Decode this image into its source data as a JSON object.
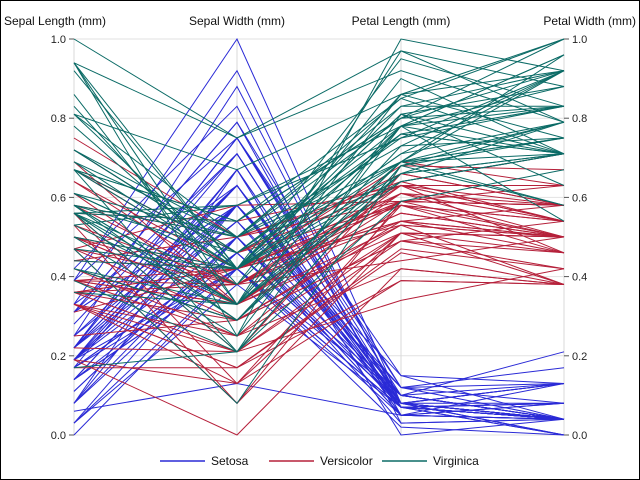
{
  "chart_data": {
    "type": "line",
    "subtype": "parallel-coordinates",
    "axes": [
      "Sepal Length (mm)",
      "Sepal Width (mm)",
      "Petal Length (mm)",
      "Petal Width (mm)"
    ],
    "ylim": [
      0.0,
      1.0
    ],
    "y_ticks": [
      "0.0",
      "0.2",
      "0.4",
      "0.6",
      "0.8",
      "1.0"
    ],
    "grid": true,
    "legend_position": "bottom",
    "series": [
      {
        "name": "Setosa",
        "color": "#2a2ad6",
        "values": [
          [
            0.22,
            0.63,
            0.07,
            0.04
          ],
          [
            0.17,
            0.42,
            0.07,
            0.04
          ],
          [
            0.11,
            0.5,
            0.05,
            0.04
          ],
          [
            0.08,
            0.46,
            0.08,
            0.04
          ],
          [
            0.19,
            0.67,
            0.07,
            0.04
          ],
          [
            0.31,
            0.79,
            0.12,
            0.13
          ],
          [
            0.08,
            0.58,
            0.07,
            0.08
          ],
          [
            0.19,
            0.58,
            0.08,
            0.04
          ],
          [
            0.03,
            0.38,
            0.07,
            0.04
          ],
          [
            0.17,
            0.46,
            0.08,
            0.0
          ],
          [
            0.31,
            0.71,
            0.08,
            0.04
          ],
          [
            0.14,
            0.58,
            0.1,
            0.04
          ],
          [
            0.14,
            0.42,
            0.07,
            0.0
          ],
          [
            0.0,
            0.42,
            0.02,
            0.0
          ],
          [
            0.42,
            0.83,
            0.03,
            0.04
          ],
          [
            0.39,
            1.0,
            0.08,
            0.13
          ],
          [
            0.31,
            0.79,
            0.05,
            0.13
          ],
          [
            0.22,
            0.63,
            0.07,
            0.08
          ],
          [
            0.39,
            0.75,
            0.12,
            0.08
          ],
          [
            0.22,
            0.75,
            0.08,
            0.08
          ],
          [
            0.31,
            0.58,
            0.12,
            0.04
          ],
          [
            0.22,
            0.71,
            0.08,
            0.13
          ],
          [
            0.08,
            0.67,
            0.0,
            0.04
          ],
          [
            0.22,
            0.54,
            0.12,
            0.17
          ],
          [
            0.14,
            0.58,
            0.15,
            0.04
          ],
          [
            0.19,
            0.42,
            0.1,
            0.04
          ],
          [
            0.19,
            0.58,
            0.1,
            0.13
          ],
          [
            0.25,
            0.63,
            0.08,
            0.04
          ],
          [
            0.25,
            0.58,
            0.07,
            0.04
          ],
          [
            0.11,
            0.5,
            0.1,
            0.04
          ],
          [
            0.14,
            0.46,
            0.1,
            0.04
          ],
          [
            0.31,
            0.58,
            0.08,
            0.13
          ],
          [
            0.25,
            0.88,
            0.08,
            0.0
          ],
          [
            0.33,
            0.92,
            0.07,
            0.04
          ],
          [
            0.17,
            0.46,
            0.08,
            0.04
          ],
          [
            0.19,
            0.5,
            0.03,
            0.04
          ],
          [
            0.33,
            0.63,
            0.05,
            0.04
          ],
          [
            0.17,
            0.67,
            0.07,
            0.0
          ],
          [
            0.03,
            0.42,
            0.05,
            0.04
          ],
          [
            0.22,
            0.58,
            0.08,
            0.04
          ],
          [
            0.19,
            0.63,
            0.05,
            0.08
          ],
          [
            0.06,
            0.13,
            0.05,
            0.08
          ],
          [
            0.03,
            0.5,
            0.05,
            0.04
          ],
          [
            0.19,
            0.63,
            0.1,
            0.21
          ],
          [
            0.22,
            0.75,
            0.15,
            0.13
          ],
          [
            0.14,
            0.42,
            0.07,
            0.08
          ],
          [
            0.22,
            0.75,
            0.1,
            0.04
          ],
          [
            0.08,
            0.5,
            0.07,
            0.04
          ],
          [
            0.28,
            0.71,
            0.08,
            0.04
          ],
          [
            0.19,
            0.54,
            0.07,
            0.04
          ]
        ]
      },
      {
        "name": "Versicolor",
        "color": "#b5203a",
        "values": [
          [
            0.75,
            0.5,
            0.63,
            0.54
          ],
          [
            0.58,
            0.5,
            0.59,
            0.58
          ],
          [
            0.72,
            0.46,
            0.66,
            0.58
          ],
          [
            0.33,
            0.13,
            0.51,
            0.5
          ],
          [
            0.61,
            0.33,
            0.61,
            0.58
          ],
          [
            0.39,
            0.33,
            0.59,
            0.5
          ],
          [
            0.56,
            0.54,
            0.63,
            0.63
          ],
          [
            0.17,
            0.17,
            0.39,
            0.38
          ],
          [
            0.64,
            0.38,
            0.61,
            0.5
          ],
          [
            0.25,
            0.29,
            0.49,
            0.54
          ],
          [
            0.19,
            0.0,
            0.42,
            0.38
          ],
          [
            0.44,
            0.42,
            0.54,
            0.58
          ],
          [
            0.47,
            0.08,
            0.51,
            0.38
          ],
          [
            0.5,
            0.38,
            0.63,
            0.54
          ],
          [
            0.36,
            0.38,
            0.44,
            0.5
          ],
          [
            0.67,
            0.46,
            0.58,
            0.54
          ],
          [
            0.36,
            0.42,
            0.59,
            0.58
          ],
          [
            0.42,
            0.29,
            0.53,
            0.38
          ],
          [
            0.53,
            0.08,
            0.59,
            0.58
          ],
          [
            0.36,
            0.21,
            0.49,
            0.42
          ],
          [
            0.44,
            0.5,
            0.64,
            0.71
          ],
          [
            0.5,
            0.33,
            0.51,
            0.5
          ],
          [
            0.56,
            0.21,
            0.66,
            0.58
          ],
          [
            0.5,
            0.33,
            0.63,
            0.46
          ],
          [
            0.58,
            0.38,
            0.56,
            0.5
          ],
          [
            0.64,
            0.42,
            0.58,
            0.54
          ],
          [
            0.69,
            0.33,
            0.64,
            0.54
          ],
          [
            0.67,
            0.42,
            0.68,
            0.67
          ],
          [
            0.47,
            0.38,
            0.59,
            0.58
          ],
          [
            0.39,
            0.25,
            0.42,
            0.38
          ],
          [
            0.33,
            0.17,
            0.47,
            0.42
          ],
          [
            0.33,
            0.17,
            0.46,
            0.38
          ],
          [
            0.42,
            0.29,
            0.49,
            0.46
          ],
          [
            0.47,
            0.29,
            0.69,
            0.63
          ],
          [
            0.31,
            0.42,
            0.59,
            0.58
          ],
          [
            0.47,
            0.58,
            0.59,
            0.63
          ],
          [
            0.67,
            0.46,
            0.63,
            0.58
          ],
          [
            0.56,
            0.13,
            0.58,
            0.5
          ],
          [
            0.36,
            0.42,
            0.53,
            0.5
          ],
          [
            0.33,
            0.21,
            0.51,
            0.5
          ],
          [
            0.33,
            0.25,
            0.58,
            0.46
          ],
          [
            0.5,
            0.42,
            0.61,
            0.54
          ],
          [
            0.42,
            0.25,
            0.51,
            0.46
          ],
          [
            0.19,
            0.13,
            0.39,
            0.38
          ],
          [
            0.36,
            0.29,
            0.54,
            0.5
          ],
          [
            0.39,
            0.42,
            0.54,
            0.46
          ],
          [
            0.39,
            0.38,
            0.54,
            0.5
          ],
          [
            0.53,
            0.38,
            0.56,
            0.5
          ],
          [
            0.22,
            0.21,
            0.34,
            0.42
          ],
          [
            0.39,
            0.33,
            0.53,
            0.5
          ]
        ]
      },
      {
        "name": "Virginica",
        "color": "#0b6b66",
        "values": [
          [
            0.56,
            0.54,
            0.85,
            1.0
          ],
          [
            0.42,
            0.29,
            0.69,
            0.75
          ],
          [
            0.78,
            0.42,
            0.83,
            0.83
          ],
          [
            0.56,
            0.38,
            0.78,
            0.71
          ],
          [
            0.61,
            0.42,
            0.81,
            0.88
          ],
          [
            0.92,
            0.42,
            0.95,
            0.83
          ],
          [
            0.17,
            0.21,
            0.59,
            0.67
          ],
          [
            0.83,
            0.38,
            0.9,
            0.71
          ],
          [
            0.67,
            0.21,
            0.81,
            0.71
          ],
          [
            0.81,
            0.67,
            0.86,
            1.0
          ],
          [
            0.61,
            0.5,
            0.69,
            0.79
          ],
          [
            0.58,
            0.29,
            0.73,
            0.75
          ],
          [
            0.69,
            0.42,
            0.76,
            0.83
          ],
          [
            0.39,
            0.21,
            0.68,
            0.79
          ],
          [
            0.42,
            0.33,
            0.69,
            0.96
          ],
          [
            0.58,
            0.5,
            0.73,
            0.92
          ],
          [
            0.61,
            0.42,
            0.76,
            0.71
          ],
          [
            0.94,
            0.75,
            0.97,
            0.88
          ],
          [
            0.94,
            0.25,
            1.0,
            0.92
          ],
          [
            0.47,
            0.08,
            0.68,
            0.58
          ],
          [
            0.72,
            0.5,
            0.8,
            0.92
          ],
          [
            0.36,
            0.33,
            0.66,
            0.79
          ],
          [
            0.94,
            0.33,
            0.97,
            0.79
          ],
          [
            0.56,
            0.29,
            0.66,
            0.71
          ],
          [
            0.67,
            0.54,
            0.8,
            0.83
          ],
          [
            0.81,
            0.5,
            0.85,
            0.71
          ],
          [
            0.53,
            0.33,
            0.64,
            0.71
          ],
          [
            0.5,
            0.42,
            0.66,
            0.71
          ],
          [
            0.58,
            0.33,
            0.78,
            0.83
          ],
          [
            0.81,
            0.42,
            0.81,
            0.63
          ],
          [
            0.86,
            0.33,
            0.86,
            0.75
          ],
          [
            1.0,
            0.75,
            0.92,
            0.79
          ],
          [
            0.58,
            0.33,
            0.78,
            0.88
          ],
          [
            0.56,
            0.33,
            0.69,
            0.58
          ],
          [
            0.5,
            0.25,
            0.78,
            0.54
          ],
          [
            0.94,
            0.42,
            0.86,
            0.92
          ],
          [
            0.56,
            0.58,
            0.78,
            0.96
          ],
          [
            0.58,
            0.46,
            0.76,
            0.71
          ],
          [
            0.47,
            0.42,
            0.64,
            0.71
          ],
          [
            0.72,
            0.46,
            0.75,
            0.83
          ],
          [
            0.67,
            0.46,
            0.78,
            0.96
          ],
          [
            0.72,
            0.46,
            0.69,
            0.92
          ],
          [
            0.42,
            0.29,
            0.69,
            0.75
          ],
          [
            0.69,
            0.5,
            0.83,
            0.92
          ],
          [
            0.67,
            0.54,
            0.8,
            1.0
          ],
          [
            0.67,
            0.42,
            0.71,
            0.92
          ],
          [
            0.56,
            0.21,
            0.68,
            0.75
          ],
          [
            0.61,
            0.42,
            0.71,
            0.79
          ],
          [
            0.53,
            0.58,
            0.75,
            0.92
          ],
          [
            0.44,
            0.42,
            0.69,
            0.71
          ]
        ]
      }
    ]
  }
}
